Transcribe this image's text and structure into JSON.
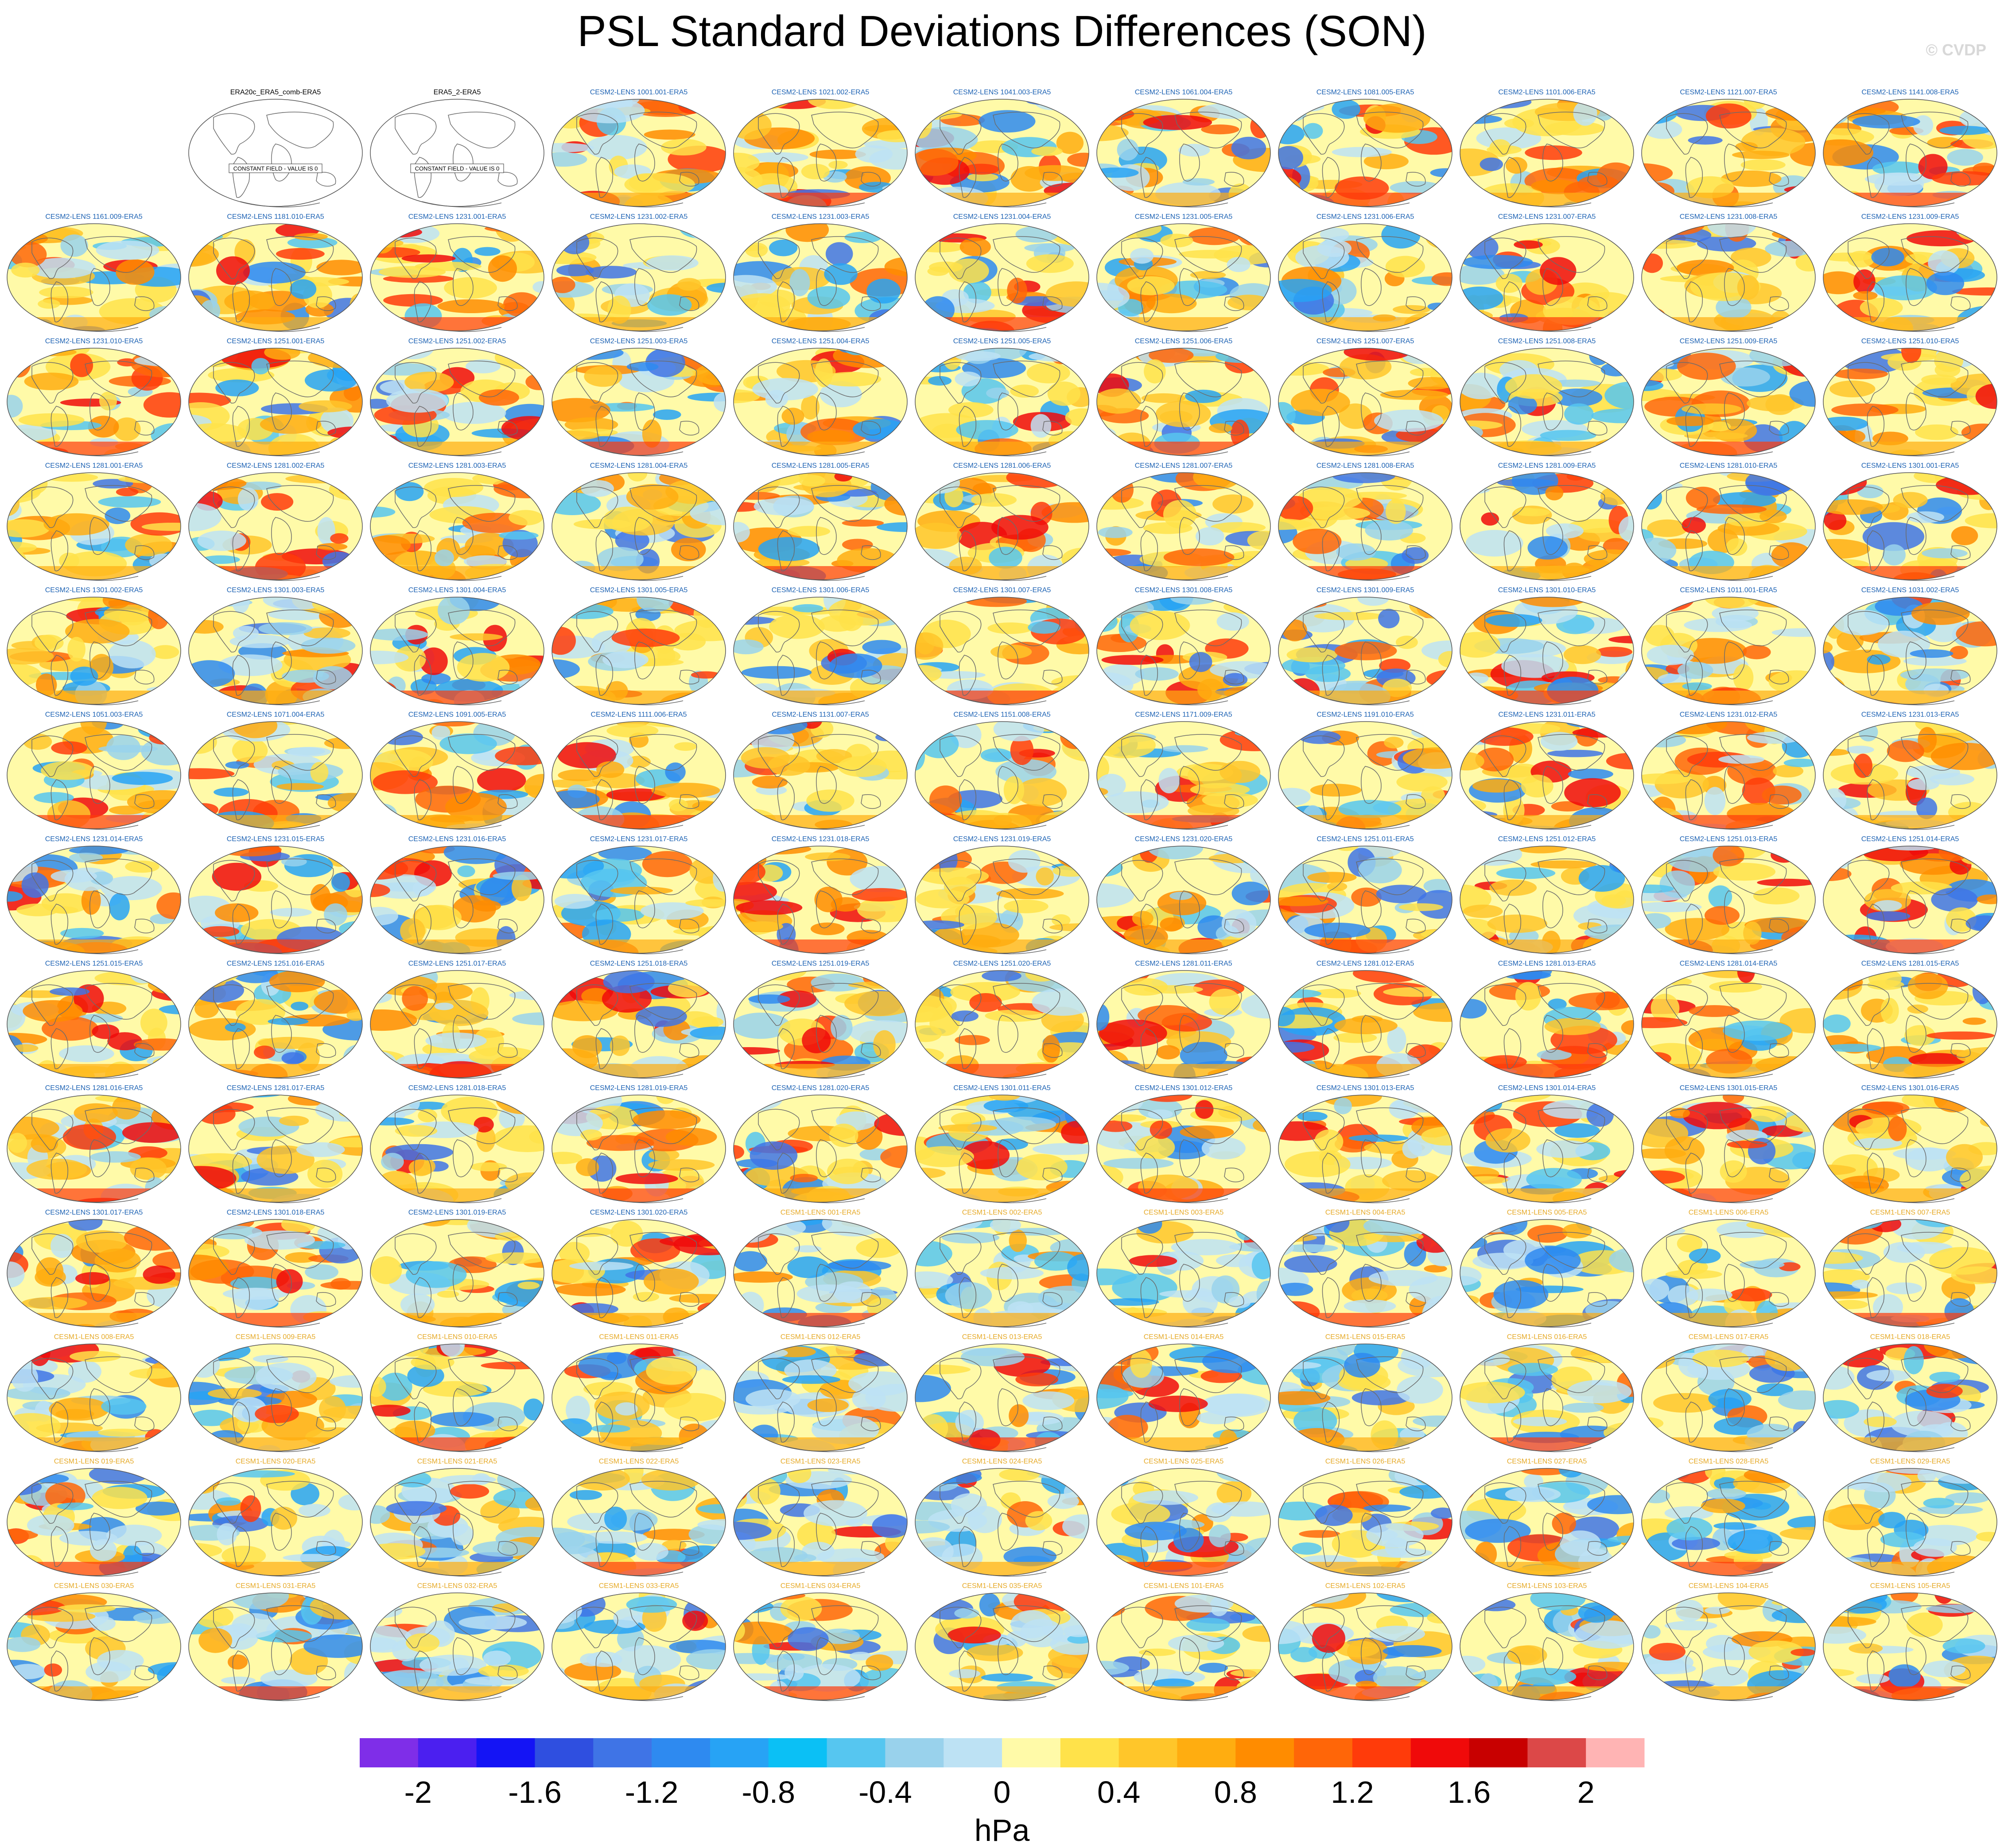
{
  "title": "PSL Standard Deviations Differences (SON)",
  "watermark": "© CVDP",
  "chart_data": {
    "type": "heatmap",
    "panel_projection": "global robinson map",
    "panels": [
      {
        "label": "ERA20c_ERA5_comb-ERA5",
        "family": "obs",
        "note": "CONSTANT FIELD - VALUE IS 0"
      },
      {
        "label": "ERA5_2-ERA5",
        "family": "obs",
        "note": "CONSTANT FIELD - VALUE IS 0"
      },
      {
        "label": "CESM2-LENS 1001.001-ERA5",
        "family": "cesm2"
      },
      {
        "label": "CESM2-LENS 1021.002-ERA5",
        "family": "cesm2"
      },
      {
        "label": "CESM2-LENS 1041.003-ERA5",
        "family": "cesm2"
      },
      {
        "label": "CESM2-LENS 1061.004-ERA5",
        "family": "cesm2"
      },
      {
        "label": "CESM2-LENS 1081.005-ERA5",
        "family": "cesm2"
      },
      {
        "label": "CESM2-LENS 1101.006-ERA5",
        "family": "cesm2"
      },
      {
        "label": "CESM2-LENS 1121.007-ERA5",
        "family": "cesm2"
      },
      {
        "label": "CESM2-LENS 1141.008-ERA5",
        "family": "cesm2"
      },
      {
        "label": "CESM2-LENS 1161.009-ERA5",
        "family": "cesm2"
      },
      {
        "label": "CESM2-LENS 1181.010-ERA5",
        "family": "cesm2"
      },
      {
        "label": "CESM2-LENS 1231.001-ERA5",
        "family": "cesm2"
      },
      {
        "label": "CESM2-LENS 1231.002-ERA5",
        "family": "cesm2"
      },
      {
        "label": "CESM2-LENS 1231.003-ERA5",
        "family": "cesm2"
      },
      {
        "label": "CESM2-LENS 1231.004-ERA5",
        "family": "cesm2"
      },
      {
        "label": "CESM2-LENS 1231.005-ERA5",
        "family": "cesm2"
      },
      {
        "label": "CESM2-LENS 1231.006-ERA5",
        "family": "cesm2"
      },
      {
        "label": "CESM2-LENS 1231.007-ERA5",
        "family": "cesm2"
      },
      {
        "label": "CESM2-LENS 1231.008-ERA5",
        "family": "cesm2"
      },
      {
        "label": "CESM2-LENS 1231.009-ERA5",
        "family": "cesm2"
      },
      {
        "label": "CESM2-LENS 1231.010-ERA5",
        "family": "cesm2"
      },
      {
        "label": "CESM2-LENS 1251.001-ERA5",
        "family": "cesm2"
      },
      {
        "label": "CESM2-LENS 1251.002-ERA5",
        "family": "cesm2"
      },
      {
        "label": "CESM2-LENS 1251.003-ERA5",
        "family": "cesm2"
      },
      {
        "label": "CESM2-LENS 1251.004-ERA5",
        "family": "cesm2"
      },
      {
        "label": "CESM2-LENS 1251.005-ERA5",
        "family": "cesm2"
      },
      {
        "label": "CESM2-LENS 1251.006-ERA5",
        "family": "cesm2"
      },
      {
        "label": "CESM2-LENS 1251.007-ERA5",
        "family": "cesm2"
      },
      {
        "label": "CESM2-LENS 1251.008-ERA5",
        "family": "cesm2"
      },
      {
        "label": "CESM2-LENS 1251.009-ERA5",
        "family": "cesm2"
      },
      {
        "label": "CESM2-LENS 1251.010-ERA5",
        "family": "cesm2"
      },
      {
        "label": "CESM2-LENS 1281.001-ERA5",
        "family": "cesm2"
      },
      {
        "label": "CESM2-LENS 1281.002-ERA5",
        "family": "cesm2"
      },
      {
        "label": "CESM2-LENS 1281.003-ERA5",
        "family": "cesm2"
      },
      {
        "label": "CESM2-LENS 1281.004-ERA5",
        "family": "cesm2"
      },
      {
        "label": "CESM2-LENS 1281.005-ERA5",
        "family": "cesm2"
      },
      {
        "label": "CESM2-LENS 1281.006-ERA5",
        "family": "cesm2"
      },
      {
        "label": "CESM2-LENS 1281.007-ERA5",
        "family": "cesm2"
      },
      {
        "label": "CESM2-LENS 1281.008-ERA5",
        "family": "cesm2"
      },
      {
        "label": "CESM2-LENS 1281.009-ERA5",
        "family": "cesm2"
      },
      {
        "label": "CESM2-LENS 1281.010-ERA5",
        "family": "cesm2"
      },
      {
        "label": "CESM2-LENS 1301.001-ERA5",
        "family": "cesm2"
      },
      {
        "label": "CESM2-LENS 1301.002-ERA5",
        "family": "cesm2"
      },
      {
        "label": "CESM2-LENS 1301.003-ERA5",
        "family": "cesm2"
      },
      {
        "label": "CESM2-LENS 1301.004-ERA5",
        "family": "cesm2"
      },
      {
        "label": "CESM2-LENS 1301.005-ERA5",
        "family": "cesm2"
      },
      {
        "label": "CESM2-LENS 1301.006-ERA5",
        "family": "cesm2"
      },
      {
        "label": "CESM2-LENS 1301.007-ERA5",
        "family": "cesm2"
      },
      {
        "label": "CESM2-LENS 1301.008-ERA5",
        "family": "cesm2"
      },
      {
        "label": "CESM2-LENS 1301.009-ERA5",
        "family": "cesm2"
      },
      {
        "label": "CESM2-LENS 1301.010-ERA5",
        "family": "cesm2"
      },
      {
        "label": "CESM2-LENS 1011.001-ERA5",
        "family": "cesm2"
      },
      {
        "label": "CESM2-LENS 1031.002-ERA5",
        "family": "cesm2"
      },
      {
        "label": "CESM2-LENS 1051.003-ERA5",
        "family": "cesm2"
      },
      {
        "label": "CESM2-LENS 1071.004-ERA5",
        "family": "cesm2"
      },
      {
        "label": "CESM2-LENS 1091.005-ERA5",
        "family": "cesm2"
      },
      {
        "label": "CESM2-LENS 1111.006-ERA5",
        "family": "cesm2"
      },
      {
        "label": "CESM2-LENS 1131.007-ERA5",
        "family": "cesm2"
      },
      {
        "label": "CESM2-LENS 1151.008-ERA5",
        "family": "cesm2"
      },
      {
        "label": "CESM2-LENS 1171.009-ERA5",
        "family": "cesm2"
      },
      {
        "label": "CESM2-LENS 1191.010-ERA5",
        "family": "cesm2"
      },
      {
        "label": "CESM2-LENS 1231.011-ERA5",
        "family": "cesm2"
      },
      {
        "label": "CESM2-LENS 1231.012-ERA5",
        "family": "cesm2"
      },
      {
        "label": "CESM2-LENS 1231.013-ERA5",
        "family": "cesm2"
      },
      {
        "label": "CESM2-LENS 1231.014-ERA5",
        "family": "cesm2"
      },
      {
        "label": "CESM2-LENS 1231.015-ERA5",
        "family": "cesm2"
      },
      {
        "label": "CESM2-LENS 1231.016-ERA5",
        "family": "cesm2"
      },
      {
        "label": "CESM2-LENS 1231.017-ERA5",
        "family": "cesm2"
      },
      {
        "label": "CESM2-LENS 1231.018-ERA5",
        "family": "cesm2"
      },
      {
        "label": "CESM2-LENS 1231.019-ERA5",
        "family": "cesm2"
      },
      {
        "label": "CESM2-LENS 1231.020-ERA5",
        "family": "cesm2"
      },
      {
        "label": "CESM2-LENS 1251.011-ERA5",
        "family": "cesm2"
      },
      {
        "label": "CESM2-LENS 1251.012-ERA5",
        "family": "cesm2"
      },
      {
        "label": "CESM2-LENS 1251.013-ERA5",
        "family": "cesm2"
      },
      {
        "label": "CESM2-LENS 1251.014-ERA5",
        "family": "cesm2"
      },
      {
        "label": "CESM2-LENS 1251.015-ERA5",
        "family": "cesm2"
      },
      {
        "label": "CESM2-LENS 1251.016-ERA5",
        "family": "cesm2"
      },
      {
        "label": "CESM2-LENS 1251.017-ERA5",
        "family": "cesm2"
      },
      {
        "label": "CESM2-LENS 1251.018-ERA5",
        "family": "cesm2"
      },
      {
        "label": "CESM2-LENS 1251.019-ERA5",
        "family": "cesm2"
      },
      {
        "label": "CESM2-LENS 1251.020-ERA5",
        "family": "cesm2"
      },
      {
        "label": "CESM2-LENS 1281.011-ERA5",
        "family": "cesm2"
      },
      {
        "label": "CESM2-LENS 1281.012-ERA5",
        "family": "cesm2"
      },
      {
        "label": "CESM2-LENS 1281.013-ERA5",
        "family": "cesm2"
      },
      {
        "label": "CESM2-LENS 1281.014-ERA5",
        "family": "cesm2"
      },
      {
        "label": "CESM2-LENS 1281.015-ERA5",
        "family": "cesm2"
      },
      {
        "label": "CESM2-LENS 1281.016-ERA5",
        "family": "cesm2"
      },
      {
        "label": "CESM2-LENS 1281.017-ERA5",
        "family": "cesm2"
      },
      {
        "label": "CESM2-LENS 1281.018-ERA5",
        "family": "cesm2"
      },
      {
        "label": "CESM2-LENS 1281.019-ERA5",
        "family": "cesm2"
      },
      {
        "label": "CESM2-LENS 1281.020-ERA5",
        "family": "cesm2"
      },
      {
        "label": "CESM2-LENS 1301.011-ERA5",
        "family": "cesm2"
      },
      {
        "label": "CESM2-LENS 1301.012-ERA5",
        "family": "cesm2"
      },
      {
        "label": "CESM2-LENS 1301.013-ERA5",
        "family": "cesm2"
      },
      {
        "label": "CESM2-LENS 1301.014-ERA5",
        "family": "cesm2"
      },
      {
        "label": "CESM2-LENS 1301.015-ERA5",
        "family": "cesm2"
      },
      {
        "label": "CESM2-LENS 1301.016-ERA5",
        "family": "cesm2"
      },
      {
        "label": "CESM2-LENS 1301.017-ERA5",
        "family": "cesm2"
      },
      {
        "label": "CESM2-LENS 1301.018-ERA5",
        "family": "cesm2"
      },
      {
        "label": "CESM2-LENS 1301.019-ERA5",
        "family": "cesm2"
      },
      {
        "label": "CESM2-LENS 1301.020-ERA5",
        "family": "cesm2"
      },
      {
        "label": "CESM1-LENS 001-ERA5",
        "family": "cesm1"
      },
      {
        "label": "CESM1-LENS 002-ERA5",
        "family": "cesm1"
      },
      {
        "label": "CESM1-LENS 003-ERA5",
        "family": "cesm1"
      },
      {
        "label": "CESM1-LENS 004-ERA5",
        "family": "cesm1"
      },
      {
        "label": "CESM1-LENS 005-ERA5",
        "family": "cesm1"
      },
      {
        "label": "CESM1-LENS 006-ERA5",
        "family": "cesm1"
      },
      {
        "label": "CESM1-LENS 007-ERA5",
        "family": "cesm1"
      },
      {
        "label": "CESM1-LENS 008-ERA5",
        "family": "cesm1"
      },
      {
        "label": "CESM1-LENS 009-ERA5",
        "family": "cesm1"
      },
      {
        "label": "CESM1-LENS 010-ERA5",
        "family": "cesm1"
      },
      {
        "label": "CESM1-LENS 011-ERA5",
        "family": "cesm1"
      },
      {
        "label": "CESM1-LENS 012-ERA5",
        "family": "cesm1"
      },
      {
        "label": "CESM1-LENS 013-ERA5",
        "family": "cesm1"
      },
      {
        "label": "CESM1-LENS 014-ERA5",
        "family": "cesm1"
      },
      {
        "label": "CESM1-LENS 015-ERA5",
        "family": "cesm1"
      },
      {
        "label": "CESM1-LENS 016-ERA5",
        "family": "cesm1"
      },
      {
        "label": "CESM1-LENS 017-ERA5",
        "family": "cesm1"
      },
      {
        "label": "CESM1-LENS 018-ERA5",
        "family": "cesm1"
      },
      {
        "label": "CESM1-LENS 019-ERA5",
        "family": "cesm1"
      },
      {
        "label": "CESM1-LENS 020-ERA5",
        "family": "cesm1"
      },
      {
        "label": "CESM1-LENS 021-ERA5",
        "family": "cesm1"
      },
      {
        "label": "CESM1-LENS 022-ERA5",
        "family": "cesm1"
      },
      {
        "label": "CESM1-LENS 023-ERA5",
        "family": "cesm1"
      },
      {
        "label": "CESM1-LENS 024-ERA5",
        "family": "cesm1"
      },
      {
        "label": "CESM1-LENS 025-ERA5",
        "family": "cesm1"
      },
      {
        "label": "CESM1-LENS 026-ERA5",
        "family": "cesm1"
      },
      {
        "label": "CESM1-LENS 027-ERA5",
        "family": "cesm1"
      },
      {
        "label": "CESM1-LENS 028-ERA5",
        "family": "cesm1"
      },
      {
        "label": "CESM1-LENS 029-ERA5",
        "family": "cesm1"
      },
      {
        "label": "CESM1-LENS 030-ERA5",
        "family": "cesm1"
      },
      {
        "label": "CESM1-LENS 031-ERA5",
        "family": "cesm1"
      },
      {
        "label": "CESM1-LENS 032-ERA5",
        "family": "cesm1"
      },
      {
        "label": "CESM1-LENS 033-ERA5",
        "family": "cesm1"
      },
      {
        "label": "CESM1-LENS 034-ERA5",
        "family": "cesm1"
      },
      {
        "label": "CESM1-LENS 035-ERA5",
        "family": "cesm1"
      },
      {
        "label": "CESM1-LENS 101-ERA5",
        "family": "cesm1"
      },
      {
        "label": "CESM1-LENS 102-ERA5",
        "family": "cesm1"
      },
      {
        "label": "CESM1-LENS 103-ERA5",
        "family": "cesm1"
      },
      {
        "label": "CESM1-LENS 104-ERA5",
        "family": "cesm1"
      },
      {
        "label": "CESM1-LENS 105-ERA5",
        "family": "cesm1"
      }
    ],
    "colorbar": {
      "levels": [
        -2.2,
        -2,
        -1.8,
        -1.6,
        -1.4,
        -1.2,
        -1,
        -0.8,
        -0.6,
        -0.4,
        -0.2,
        0,
        0.2,
        0.4,
        0.6,
        0.8,
        1,
        1.2,
        1.4,
        1.6,
        1.8,
        2,
        2.2
      ],
      "colors": [
        "#7f2ee8",
        "#4b1ff0",
        "#1414f5",
        "#2f4fe0",
        "#3f74e6",
        "#2e8af0",
        "#27a3f5",
        "#0bc0f5",
        "#56c6f0",
        "#99d2ec",
        "#bde2f4",
        "#fffaa8",
        "#ffe24a",
        "#ffc62a",
        "#ffad10",
        "#ff8c00",
        "#ff6608",
        "#ff3b0a",
        "#f00a0a",
        "#c80000",
        "#dc4848",
        "#ffb4b4"
      ],
      "tick_labels": [
        "-2",
        "-1.6",
        "-1.2",
        "-0.8",
        "-0.4",
        "0",
        "0.4",
        "0.8",
        "1.2",
        "1.6",
        "2"
      ],
      "tick_values": [
        -2,
        -1.6,
        -1.2,
        -0.8,
        -0.4,
        0,
        0.4,
        0.8,
        1.2,
        1.6,
        2
      ],
      "unit": "hPa"
    },
    "title_colors": {
      "obs": "#000000",
      "cesm2": "#1e63b4",
      "cesm1": "#e6aa28"
    }
  }
}
